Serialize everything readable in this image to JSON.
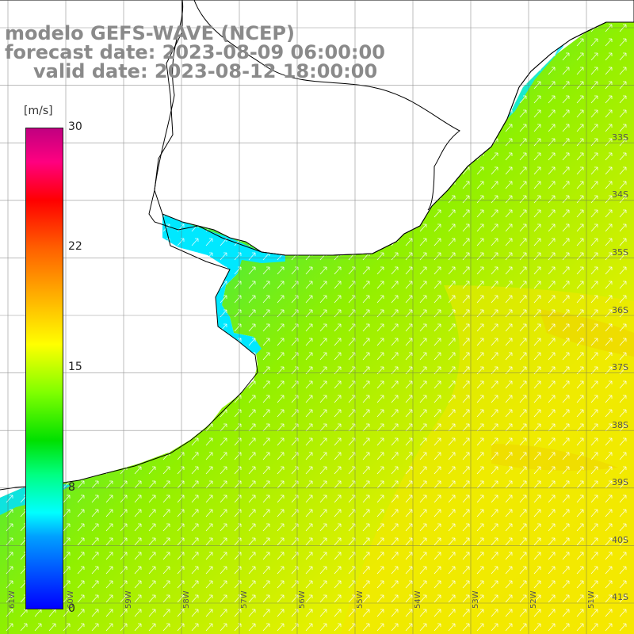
{
  "titles": {
    "line1": "modelo GEFS-WAVE (NCEP)",
    "line2": "forecast date: 2023-08-09 06:00:00",
    "line3": "valid date: 2023-08-12 18:00:00"
  },
  "colorbar": {
    "unit": "[m/s]",
    "ticks": [
      "30",
      "22",
      "15",
      "8",
      "0"
    ],
    "colors": [
      "#0000ff",
      "#00a0ff",
      "#00ffff",
      "#00ff80",
      "#00e000",
      "#80ff00",
      "#ffff00",
      "#ffb000",
      "#ff6000",
      "#ff0000",
      "#ff0080",
      "#c00080"
    ]
  },
  "lat_labels": [
    "33S",
    "34S",
    "35S",
    "36S",
    "37S",
    "38S",
    "39S",
    "40S",
    "41S"
  ],
  "lon_labels": [
    "61W",
    "60W",
    "59W",
    "58W",
    "57W",
    "56W",
    "55W",
    "54W",
    "53W",
    "52W",
    "51W"
  ]
}
